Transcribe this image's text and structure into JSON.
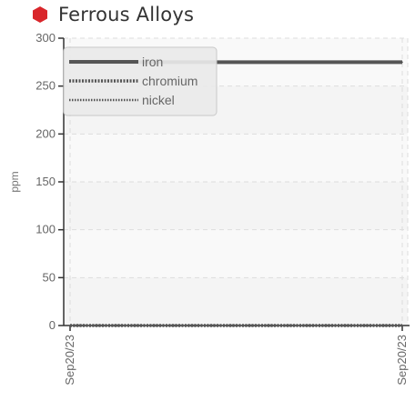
{
  "header": {
    "title": "Ferrous Alloys",
    "status_icon": "red-hexagon-icon",
    "status_color": "#d9262b"
  },
  "chart_data": {
    "type": "line",
    "title": "Ferrous Alloys",
    "ylabel": "ppm",
    "xlabel": "",
    "ylim": [
      0,
      300
    ],
    "yticks": [
      0,
      50,
      100,
      150,
      200,
      250,
      300
    ],
    "x": [
      "Sep20/23",
      "Sep20/23"
    ],
    "grid": true,
    "legend_position": "top-left",
    "series": [
      {
        "name": "iron",
        "style": "solid",
        "color": "#555555",
        "values": [
          275,
          275
        ]
      },
      {
        "name": "chromium",
        "style": "dashed",
        "color": "#555555",
        "values": [
          0,
          0
        ]
      },
      {
        "name": "nickel",
        "style": "dotted",
        "color": "#555555",
        "values": [
          0,
          0
        ]
      }
    ]
  }
}
